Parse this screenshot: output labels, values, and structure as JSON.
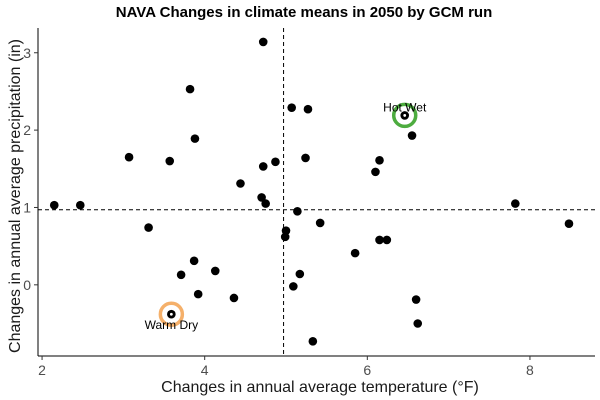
{
  "chart_data": {
    "type": "scatter",
    "title": "NAVA Changes in climate means in 2050 by GCM run",
    "xlabel": "Changes in annual average temperature (°F)",
    "ylabel": "Changes in annual average precipitation (in)",
    "xlim": [
      1.95,
      8.8
    ],
    "ylim": [
      -0.92,
      3.32
    ],
    "x_ticks": [
      2,
      4,
      6,
      8
    ],
    "x_tick_labels": [
      "2",
      "4",
      "6",
      "8"
    ],
    "y_ticks": [
      0,
      1,
      2,
      3
    ],
    "y_tick_labels": [
      "0",
      "1",
      "2",
      "3"
    ],
    "grid": false,
    "reference_lines": {
      "x": 4.97,
      "y": 0.97
    },
    "point_color": "#000000",
    "points": [
      {
        "x": 4.72,
        "y": 3.14
      },
      {
        "x": 3.82,
        "y": 2.53
      },
      {
        "x": 5.07,
        "y": 2.29
      },
      {
        "x": 5.27,
        "y": 2.27
      },
      {
        "x": 3.88,
        "y": 1.89
      },
      {
        "x": 6.55,
        "y": 1.93
      },
      {
        "x": 3.07,
        "y": 1.65
      },
      {
        "x": 3.57,
        "y": 1.6
      },
      {
        "x": 6.15,
        "y": 1.61
      },
      {
        "x": 5.24,
        "y": 1.64
      },
      {
        "x": 4.87,
        "y": 1.59
      },
      {
        "x": 4.72,
        "y": 1.53
      },
      {
        "x": 6.1,
        "y": 1.46
      },
      {
        "x": 4.44,
        "y": 1.31
      },
      {
        "x": 4.7,
        "y": 1.13
      },
      {
        "x": 4.75,
        "y": 1.05
      },
      {
        "x": 2.15,
        "y": 1.03
      },
      {
        "x": 2.47,
        "y": 1.03
      },
      {
        "x": 7.82,
        "y": 1.05
      },
      {
        "x": 5.14,
        "y": 0.95
      },
      {
        "x": 5.42,
        "y": 0.8
      },
      {
        "x": 8.48,
        "y": 0.79
      },
      {
        "x": 3.31,
        "y": 0.74
      },
      {
        "x": 5.0,
        "y": 0.7
      },
      {
        "x": 4.99,
        "y": 0.62
      },
      {
        "x": 6.15,
        "y": 0.58
      },
      {
        "x": 6.24,
        "y": 0.58
      },
      {
        "x": 5.85,
        "y": 0.41
      },
      {
        "x": 3.87,
        "y": 0.31
      },
      {
        "x": 4.13,
        "y": 0.18
      },
      {
        "x": 3.71,
        "y": 0.13
      },
      {
        "x": 5.17,
        "y": 0.14
      },
      {
        "x": 5.09,
        "y": -0.02
      },
      {
        "x": 3.92,
        "y": -0.12
      },
      {
        "x": 4.36,
        "y": -0.17
      },
      {
        "x": 6.6,
        "y": -0.19
      },
      {
        "x": 6.62,
        "y": -0.5
      },
      {
        "x": 5.33,
        "y": -0.73
      },
      {
        "x": 6.46,
        "y": 2.19
      },
      {
        "x": 3.59,
        "y": -0.38
      }
    ],
    "annotations": [
      {
        "label": "Hot Wet",
        "x": 6.46,
        "y": 2.19,
        "ring_color": "#4dac3f",
        "label_pos": "above"
      },
      {
        "label": "Warm Dry",
        "x": 3.59,
        "y": -0.38,
        "ring_color": "#f5b06a",
        "label_pos": "below"
      }
    ]
  }
}
